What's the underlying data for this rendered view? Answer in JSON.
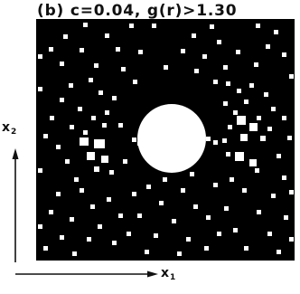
{
  "figure": {
    "panel_label": "(b)",
    "caption": "(b) c=0.04, g(r)>1.30",
    "axes": {
      "x_axis": "x",
      "x_axis_sub": "1",
      "y_axis": "x",
      "y_axis_sub": "2"
    }
  },
  "colors": {
    "background": "#ffffff",
    "map": "#000000",
    "cells": "#ffffff",
    "ink": "#111111"
  }
}
